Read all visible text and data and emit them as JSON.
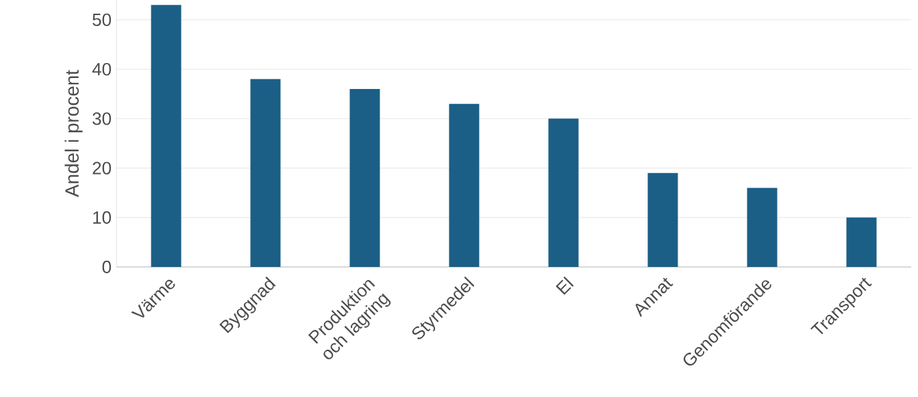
{
  "chart_data": {
    "type": "bar",
    "ylabel": "Andel i procent",
    "categories": [
      "Värme",
      "Byggnad",
      "Produktion och lagring",
      "Styrmedel",
      "El",
      "Annat",
      "Genomförande",
      "Transport"
    ],
    "values": [
      53,
      38,
      36,
      33,
      30,
      19,
      16,
      10
    ],
    "color": "#1b5f86",
    "ylim": [
      0,
      54
    ],
    "yticks": [
      0,
      10,
      20,
      30,
      40,
      50
    ],
    "grid": "y"
  }
}
